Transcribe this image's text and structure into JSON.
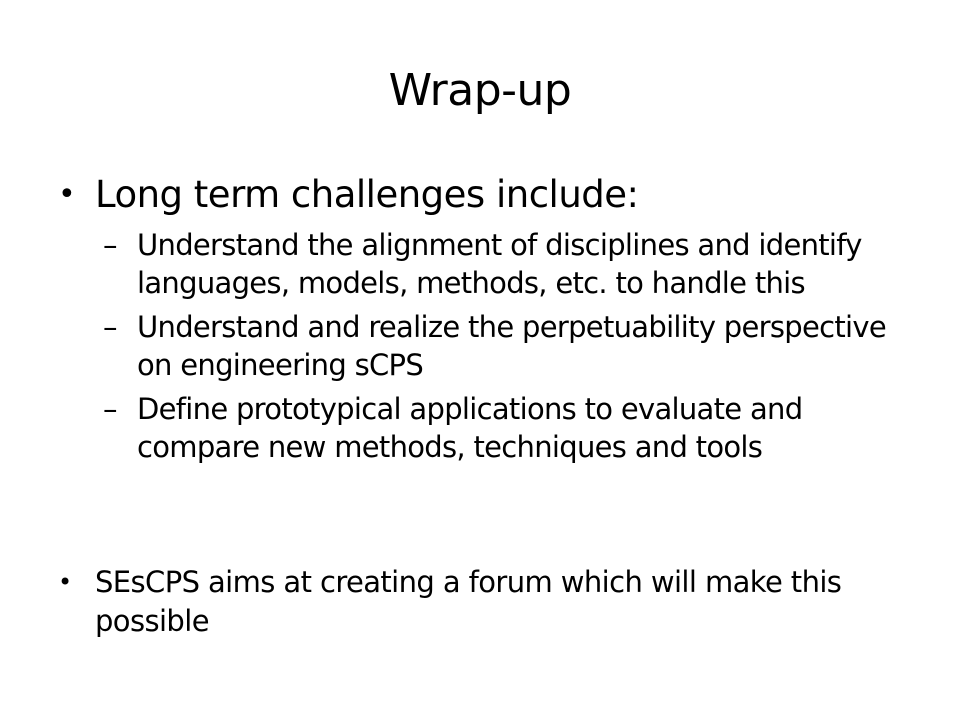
{
  "slide": {
    "title": "Wrap-up",
    "bullets": [
      {
        "marker": "•",
        "text": "Long term challenges include:",
        "sub_items": [
          {
            "marker": "–",
            "text": "Understand the alignment of disciplines and identify languages, models, methods, etc. to handle this"
          },
          {
            "marker": "–",
            "text": "Understand and realize the perpetuability perspective on engineering sCPS"
          },
          {
            "marker": "–",
            "text": "Define prototypical applications to evaluate and compare new methods, techniques and tools"
          }
        ]
      },
      {
        "marker": "•",
        "text": "SEsCPS aims at creating a forum which will make this possible"
      }
    ]
  }
}
